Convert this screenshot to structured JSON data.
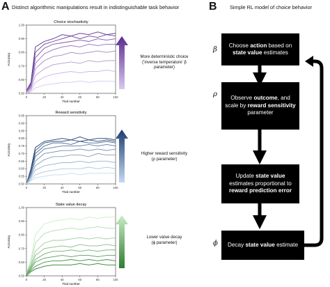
{
  "panel_a": {
    "letter": "A",
    "title": "Distinct algorithmic manipulations result in indistinguishable task behavior"
  },
  "panel_b": {
    "letter": "B",
    "title": "Simple RL model of choice behavior"
  },
  "colors": {
    "purple_dark": "#5a2a91",
    "purple_light": "#d8c9ee",
    "blue_dark": "#1d3d6e",
    "blue_light": "#c4daf0",
    "green_dark": "#2e7d32",
    "green_light": "#c9ecc4"
  },
  "legends": {
    "choice": {
      "line1": "More deterministic choice",
      "line2": "('inverse temperature' β",
      "line3": "parameter)"
    },
    "reward": {
      "line1": "Higher reward sensitivity",
      "line2": "(ρ parameter)"
    },
    "decay": {
      "line1": "Lower value decay",
      "line2": "(ϕ parameter)"
    }
  },
  "model": {
    "box1": {
      "pre": "Choose ",
      "b1": "action",
      "mid": " based on",
      "b2": "state value",
      "post": " estimates"
    },
    "box2": {
      "pre": "Observe ",
      "b1": "outcome",
      "mid": ", and scale by ",
      "b2": "reward sensitivity",
      "post": " parameter"
    },
    "box3": {
      "pre": "Update ",
      "b1": "state value",
      "mid": " estimates proportional to ",
      "b2": "reward prediction error",
      "post": ""
    },
    "box4": {
      "pre": "Decay ",
      "b1": "state value",
      "post": " estimate"
    },
    "symbols": {
      "beta": "β",
      "rho": "ρ",
      "phi": "ϕ"
    }
  },
  "chart_data": [
    {
      "type": "line",
      "title": "Choice stochasticity",
      "xlabel": "Trial number",
      "ylabel": "Accuracy",
      "xlim": [
        0,
        100
      ],
      "ylim": [
        0.5,
        1.0
      ],
      "xticks": [
        0,
        20,
        40,
        60,
        80,
        100
      ],
      "yticks": [
        0.5,
        0.6,
        0.7,
        0.8,
        0.9,
        1.0
      ],
      "x": [
        0,
        5,
        10,
        20,
        30,
        40,
        50,
        60,
        70,
        80,
        90,
        100
      ],
      "series": [
        {
          "values": [
            0.52,
            0.58,
            0.84,
            0.88,
            0.9,
            0.93,
            0.92,
            0.94,
            0.93,
            0.95,
            0.93,
            0.94
          ]
        },
        {
          "values": [
            0.52,
            0.57,
            0.8,
            0.86,
            0.88,
            0.9,
            0.92,
            0.9,
            0.92,
            0.91,
            0.93,
            0.92
          ]
        },
        {
          "values": [
            0.51,
            0.56,
            0.76,
            0.83,
            0.86,
            0.87,
            0.88,
            0.89,
            0.88,
            0.9,
            0.89,
            0.9
          ]
        },
        {
          "values": [
            0.51,
            0.55,
            0.72,
            0.79,
            0.82,
            0.84,
            0.85,
            0.84,
            0.86,
            0.85,
            0.86,
            0.86
          ]
        },
        {
          "values": [
            0.51,
            0.54,
            0.68,
            0.74,
            0.77,
            0.78,
            0.8,
            0.79,
            0.8,
            0.81,
            0.8,
            0.81
          ]
        },
        {
          "values": [
            0.5,
            0.53,
            0.63,
            0.68,
            0.71,
            0.72,
            0.73,
            0.72,
            0.74,
            0.73,
            0.74,
            0.74
          ]
        },
        {
          "values": [
            0.5,
            0.52,
            0.58,
            0.62,
            0.64,
            0.65,
            0.66,
            0.65,
            0.66,
            0.66,
            0.67,
            0.66
          ]
        },
        {
          "values": [
            0.5,
            0.51,
            0.54,
            0.56,
            0.57,
            0.58,
            0.58,
            0.59,
            0.58,
            0.59,
            0.59,
            0.59
          ]
        }
      ]
    },
    {
      "type": "line",
      "title": "Reward sensitivity",
      "xlabel": "Trial number",
      "ylabel": "Accuracy",
      "xlim": [
        0,
        100
      ],
      "ylim": [
        0.5,
        0.95
      ],
      "xticks": [
        0,
        20,
        40,
        60,
        80,
        100
      ],
      "yticks": [
        0.5,
        0.55,
        0.6,
        0.65,
        0.7,
        0.75,
        0.8,
        0.85,
        0.9,
        0.95
      ],
      "x": [
        0,
        5,
        10,
        20,
        30,
        40,
        50,
        60,
        70,
        80,
        90,
        100
      ],
      "series": [
        {
          "values": [
            0.5,
            0.6,
            0.74,
            0.78,
            0.79,
            0.8,
            0.79,
            0.81,
            0.79,
            0.8,
            0.8,
            0.79
          ]
        },
        {
          "values": [
            0.5,
            0.59,
            0.72,
            0.77,
            0.78,
            0.78,
            0.79,
            0.78,
            0.79,
            0.78,
            0.79,
            0.78
          ]
        },
        {
          "values": [
            0.5,
            0.58,
            0.7,
            0.75,
            0.77,
            0.77,
            0.76,
            0.78,
            0.77,
            0.77,
            0.78,
            0.77
          ]
        },
        {
          "values": [
            0.5,
            0.57,
            0.68,
            0.73,
            0.74,
            0.75,
            0.75,
            0.75,
            0.76,
            0.75,
            0.76,
            0.75
          ]
        },
        {
          "values": [
            0.5,
            0.56,
            0.65,
            0.7,
            0.71,
            0.72,
            0.72,
            0.73,
            0.72,
            0.73,
            0.72,
            0.73
          ]
        },
        {
          "values": [
            0.5,
            0.55,
            0.62,
            0.66,
            0.68,
            0.68,
            0.69,
            0.69,
            0.68,
            0.7,
            0.69,
            0.69
          ]
        },
        {
          "values": [
            0.5,
            0.54,
            0.59,
            0.62,
            0.63,
            0.64,
            0.64,
            0.65,
            0.64,
            0.65,
            0.65,
            0.64
          ]
        },
        {
          "values": [
            0.5,
            0.53,
            0.56,
            0.58,
            0.59,
            0.6,
            0.6,
            0.6,
            0.61,
            0.6,
            0.61,
            0.6
          ]
        },
        {
          "values": [
            0.5,
            0.52,
            0.54,
            0.55,
            0.56,
            0.56,
            0.57,
            0.56,
            0.57,
            0.57,
            0.57,
            0.57
          ]
        }
      ]
    },
    {
      "type": "line",
      "title": "State value decay",
      "xlabel": "Trial number",
      "ylabel": "Accuracy",
      "xlim": [
        0,
        100
      ],
      "ylim": [
        0.5,
        1.0
      ],
      "xticks": [
        0,
        20,
        40,
        60,
        80,
        100
      ],
      "yticks": [
        0.5,
        0.6,
        0.7,
        0.8,
        0.9,
        1.0
      ],
      "x": [
        0,
        5,
        10,
        20,
        30,
        40,
        50,
        60,
        70,
        80,
        90,
        100
      ],
      "series": [
        {
          "values": [
            0.52,
            0.62,
            0.8,
            0.88,
            0.9,
            0.91,
            0.92,
            0.91,
            0.93,
            0.92,
            0.93,
            0.93
          ]
        },
        {
          "values": [
            0.52,
            0.6,
            0.74,
            0.81,
            0.83,
            0.84,
            0.85,
            0.84,
            0.85,
            0.86,
            0.85,
            0.85
          ]
        },
        {
          "values": [
            0.52,
            0.58,
            0.68,
            0.74,
            0.76,
            0.76,
            0.77,
            0.78,
            0.77,
            0.78,
            0.77,
            0.78
          ]
        },
        {
          "values": [
            0.52,
            0.57,
            0.65,
            0.7,
            0.71,
            0.72,
            0.71,
            0.73,
            0.72,
            0.72,
            0.73,
            0.72
          ]
        },
        {
          "values": [
            0.51,
            0.56,
            0.62,
            0.66,
            0.68,
            0.68,
            0.69,
            0.68,
            0.69,
            0.68,
            0.69,
            0.69
          ]
        },
        {
          "values": [
            0.51,
            0.55,
            0.6,
            0.63,
            0.64,
            0.65,
            0.64,
            0.65,
            0.65,
            0.64,
            0.65,
            0.65
          ]
        },
        {
          "values": [
            0.51,
            0.54,
            0.57,
            0.6,
            0.61,
            0.61,
            0.62,
            0.61,
            0.62,
            0.61,
            0.62,
            0.61
          ]
        },
        {
          "values": [
            0.5,
            0.53,
            0.55,
            0.57,
            0.58,
            0.58,
            0.58,
            0.59,
            0.58,
            0.59,
            0.58,
            0.58
          ]
        }
      ]
    }
  ]
}
